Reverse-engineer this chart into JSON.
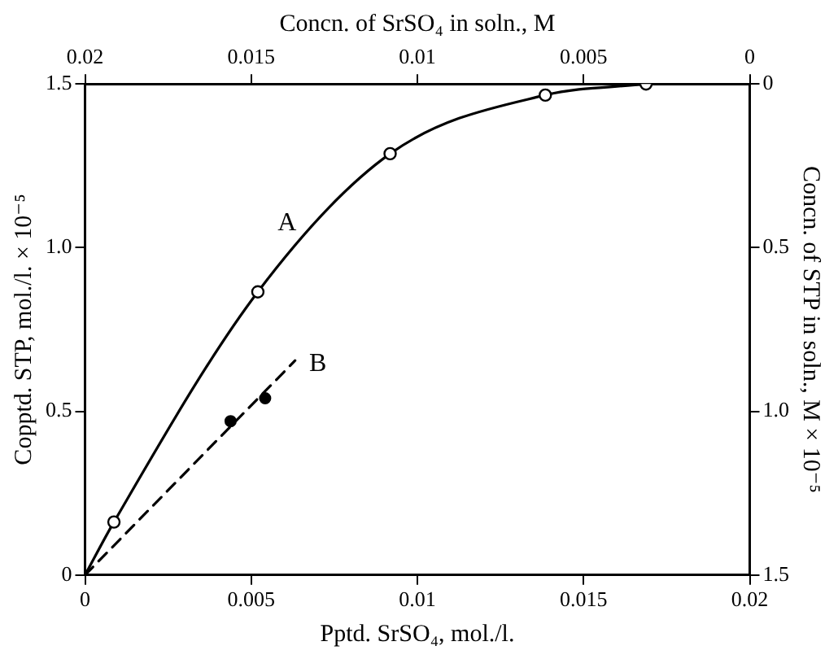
{
  "chart_data": {
    "type": "line",
    "xlabel": "Pptd. SrSO₄, mol./l.",
    "ylabel": "Copptd. STP, mol./l. × 10⁻⁵",
    "x2label": "Concn. of SrSO₄ in soln., M",
    "y2label": "Concn. of STP in soln., M × 10⁻⁵",
    "xlim": [
      0,
      0.02
    ],
    "xticks": [
      0,
      0.005,
      0.01,
      0.015,
      0.02
    ],
    "x2lim": [
      0.02,
      0
    ],
    "x2ticks": [
      0.02,
      0.015,
      0.01,
      0.005,
      0
    ],
    "ylim": [
      0,
      1.5
    ],
    "yticks": [
      0,
      {
        "value": 0.5,
        "label": "0.5"
      },
      {
        "value": 1,
        "label": "1.0"
      },
      {
        "value": 1.5,
        "label": "1.5"
      }
    ],
    "y2lim": [
      1.5,
      0
    ],
    "y2ticks": [
      0,
      {
        "value": 0.5,
        "label": "0.5"
      },
      {
        "value": 1,
        "label": "1.0"
      },
      {
        "value": 1.5,
        "label": "1.5"
      }
    ],
    "grid": false,
    "legend": false,
    "series": [
      {
        "type": "line",
        "name": "A",
        "color": "#000000",
        "marker": "none",
        "line_style": "solid",
        "x": [
          0,
          0.00087,
          0.0052,
          0.00918,
          0.01385,
          0.01688
        ],
        "values": [
          0,
          0.162,
          0.865,
          1.287,
          1.466,
          1.5
        ]
      },
      {
        "type": "scatter",
        "color": "#000000",
        "marker": "circle",
        "x": [
          0.00087,
          0.0052,
          0.00918,
          0.01385,
          0.01688
        ],
        "values": [
          0.162,
          0.865,
          1.287,
          1.466,
          1.5
        ]
      },
      {
        "type": "line",
        "name": "B",
        "color": "#000000",
        "marker": "none",
        "line_style": "dashed",
        "x": [
          0,
          0.00632
        ],
        "values": [
          0,
          0.655
        ]
      },
      {
        "type": "scatter",
        "color": "#000000",
        "marker": "circle",
        "x": [
          0.00438,
          0.00542
        ],
        "values": [
          0.47,
          0.54
        ]
      }
    ]
  }
}
